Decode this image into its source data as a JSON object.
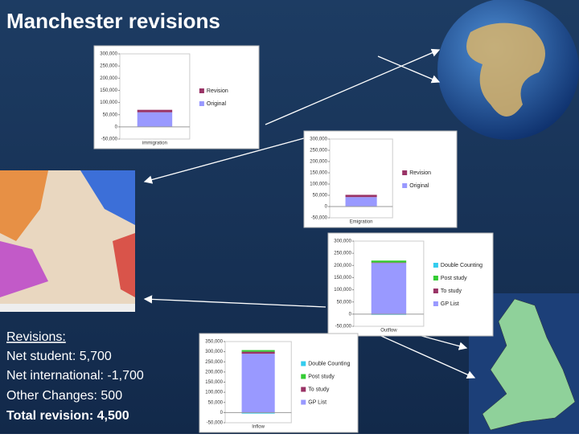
{
  "title": "Manchester revisions",
  "revisions": [
    "Revisions:",
    "Net student: 5,700",
    "Net international: -1,700",
    "Other Changes: 500",
    "Total revision: 4,500"
  ],
  "chart_data": [
    {
      "type": "bar",
      "categories": [
        "immigration"
      ],
      "series": [
        {
          "name": "Revision",
          "color": "#993366",
          "values": [
            10000
          ]
        },
        {
          "name": "Original",
          "color": "#9999ff",
          "values": [
            60000
          ]
        }
      ],
      "ylim": [
        -50000,
        300000
      ],
      "yticks": [
        {
          "value": -50000,
          "label": "-50,000"
        },
        0,
        {
          "value": 50000,
          "label": "50,000"
        },
        {
          "value": 100000,
          "label": "100,000"
        },
        {
          "value": 150000,
          "label": "150,000"
        },
        {
          "value": 200000,
          "label": "200,000"
        },
        {
          "value": 250000,
          "label": "250,000"
        },
        {
          "value": 300000,
          "label": "300,000"
        }
      ]
    },
    {
      "type": "bar",
      "categories": [
        "Emigration"
      ],
      "series": [
        {
          "name": "Revision",
          "color": "#993366",
          "values": [
            10000
          ]
        },
        {
          "name": "Original",
          "color": "#9999ff",
          "values": [
            42000
          ]
        }
      ],
      "ylim": [
        -50000,
        300000
      ],
      "yticks": [
        {
          "value": -50000,
          "label": "-50,000"
        },
        0,
        {
          "value": 50000,
          "label": "50,000"
        },
        {
          "value": 100000,
          "label": "100,000"
        },
        {
          "value": 150000,
          "label": "150,000"
        },
        {
          "value": 200000,
          "label": "200,000"
        },
        {
          "value": 250000,
          "label": "250,000"
        },
        {
          "value": 300000,
          "label": "300,000"
        }
      ]
    },
    {
      "type": "bar",
      "categories": [
        "Outflow"
      ],
      "series": [
        {
          "name": "Double Counting",
          "color": "#33ccee",
          "values": [
            -3000
          ]
        },
        {
          "name": "Post study",
          "color": "#33cc33",
          "values": [
            8000
          ]
        },
        {
          "name": "To study",
          "color": "#993366",
          "values": [
            2000
          ]
        },
        {
          "name": "GP List",
          "color": "#9999ff",
          "values": [
            210000
          ]
        }
      ],
      "ylim": [
        -50000,
        300000
      ],
      "yticks": [
        {
          "value": -50000,
          "label": "-50,000"
        },
        0,
        {
          "value": 50000,
          "label": "50,000"
        },
        {
          "value": 100000,
          "label": "100,000"
        },
        {
          "value": 150000,
          "label": "150,000"
        },
        {
          "value": 200000,
          "label": "200,000"
        },
        {
          "value": 250000,
          "label": "250,000"
        },
        {
          "value": 300000,
          "label": "300,000"
        }
      ]
    },
    {
      "type": "bar",
      "categories": [
        "Inflow"
      ],
      "series": [
        {
          "name": "Double Counting",
          "color": "#33ccee",
          "values": [
            -5000
          ]
        },
        {
          "name": "Post study",
          "color": "#33cc33",
          "values": [
            8000
          ]
        },
        {
          "name": "To study",
          "color": "#993366",
          "values": [
            10000
          ]
        },
        {
          "name": "GP List",
          "color": "#9999ff",
          "values": [
            290000
          ]
        }
      ],
      "ylim": [
        -50000,
        350000
      ],
      "yticks": [
        {
          "value": -50000,
          "label": "-50,000"
        },
        0,
        {
          "value": 50000,
          "label": "50,000"
        },
        {
          "value": 100000,
          "label": "100,000"
        },
        {
          "value": 150000,
          "label": "150,000"
        },
        {
          "value": 200000,
          "label": "200,000"
        },
        {
          "value": 250000,
          "label": "250,000"
        },
        {
          "value": 300000,
          "label": "300,000"
        },
        {
          "value": 350000,
          "label": "350,000"
        }
      ]
    }
  ]
}
